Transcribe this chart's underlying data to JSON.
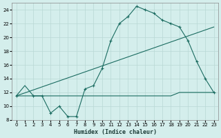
{
  "xlabel": "Humidex (Indice chaleur)",
  "bg_color": "#d4eeec",
  "grid_color": "#b8d8d4",
  "line_color": "#1a6b60",
  "xlim": [
    -0.5,
    23.5
  ],
  "ylim": [
    8,
    25
  ],
  "xticks": [
    0,
    1,
    2,
    3,
    4,
    5,
    6,
    7,
    8,
    9,
    10,
    11,
    12,
    13,
    14,
    15,
    16,
    17,
    18,
    19,
    20,
    21,
    22,
    23
  ],
  "yticks": [
    8,
    10,
    12,
    14,
    16,
    18,
    20,
    22,
    24
  ],
  "line1_x": [
    0,
    1,
    2,
    3,
    4,
    5,
    6,
    7,
    8,
    9,
    10,
    11,
    12,
    13,
    14,
    15,
    16,
    17,
    18,
    19,
    20,
    21,
    22,
    23
  ],
  "line1_y": [
    11.5,
    13,
    11.5,
    11.5,
    11.5,
    11.5,
    11.5,
    11.5,
    11.5,
    11.5,
    11.5,
    11.5,
    11.5,
    11.5,
    11.5,
    11.5,
    11.5,
    11.5,
    11.5,
    12,
    12,
    12,
    12,
    12
  ],
  "line2_x": [
    0,
    2,
    3,
    4,
    5,
    6,
    7,
    8,
    9,
    10,
    11,
    12,
    13,
    14,
    15,
    16,
    17,
    18,
    19,
    20,
    21,
    22,
    23
  ],
  "line2_y": [
    11.5,
    11.5,
    11.5,
    9.0,
    10.0,
    8.5,
    8.5,
    12.5,
    13.0,
    15.5,
    19.5,
    22.0,
    23.0,
    24.5,
    24.0,
    23.5,
    22.5,
    22.0,
    21.5,
    19.5,
    16.5,
    14.0,
    12.0
  ],
  "line3_x": [
    0,
    23
  ],
  "line3_y": [
    11.5,
    21.5
  ]
}
